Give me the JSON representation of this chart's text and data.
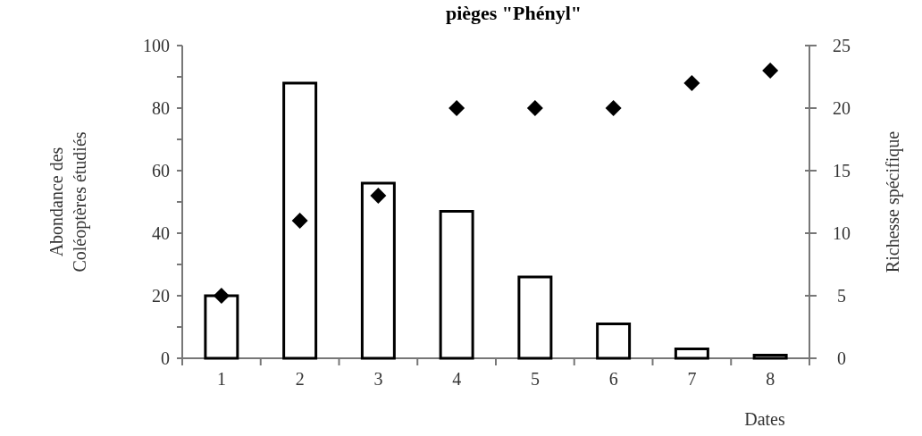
{
  "chart_data": {
    "type": "bar",
    "title": "pièges \"Phényl\"",
    "xlabel": "Dates",
    "ylabel": "Abondance des\nColéoptères étudiés",
    "y2label": "Richesse spécifique",
    "categories": [
      "1",
      "2",
      "3",
      "4",
      "5",
      "6",
      "7",
      "8"
    ],
    "series": [
      {
        "color": "#ffffff",
        "values": [
          20,
          88,
          56,
          47,
          26,
          11,
          3,
          1
        ]
      },
      {
        "type": "scatter",
        "axis": "y2",
        "color": "#000000",
        "marker": "diamond",
        "values": [
          5,
          11,
          13,
          20,
          20,
          20,
          22,
          23
        ]
      }
    ],
    "ylim": [
      0,
      100
    ],
    "yticks": [
      0,
      {
        "value": 10,
        "label": null
      },
      20,
      {
        "value": 30,
        "label": null
      },
      40,
      {
        "value": 50,
        "label": null
      },
      60,
      {
        "value": 70,
        "label": null
      },
      80,
      {
        "value": 90,
        "label": null
      },
      100
    ],
    "y2lim": [
      0,
      25
    ],
    "y2ticks": [
      0,
      5,
      10,
      15,
      20,
      25
    ],
    "grid": false
  }
}
